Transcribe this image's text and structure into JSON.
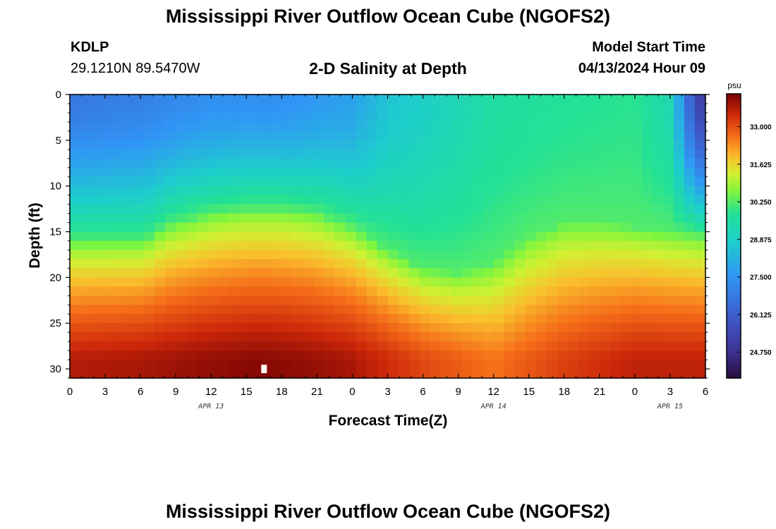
{
  "page": {
    "title": "Mississippi River Outflow Ocean Cube (NGOFS2)",
    "station_id": "KDLP",
    "coordinates": "29.1210N  89.5470W",
    "subtitle": "2-D Salinity at Depth",
    "model_start_label": "Model Start Time",
    "model_start_value": "04/13/2024 Hour 09",
    "footer_title": "Mississippi River Outflow Ocean Cube (NGOFS2)"
  },
  "chart_data": {
    "type": "heatmap",
    "title": "2-D Salinity at Depth",
    "xlabel": "Forecast Time(Z)",
    "ylabel": "Depth (ft)",
    "x_unit": "forecast hours from 2024-04-13 00Z",
    "xlim": [
      0,
      54
    ],
    "ylim": [
      31,
      0
    ],
    "x_tick_values": [
      0,
      3,
      6,
      9,
      12,
      15,
      18,
      21,
      24,
      27,
      30,
      33,
      36,
      39,
      42,
      45,
      48,
      51,
      54
    ],
    "x_tick_labels": [
      "0",
      "3",
      "6",
      "9",
      "12",
      "15",
      "18",
      "21",
      "0",
      "3",
      "6",
      "9",
      "12",
      "15",
      "18",
      "21",
      "0",
      "3",
      "6"
    ],
    "y_ticks": [
      0,
      5,
      10,
      15,
      20,
      25,
      30
    ],
    "date_labels": [
      {
        "x": 12,
        "label": "APR 13"
      },
      {
        "x": 36,
        "label": "APR 14"
      },
      {
        "x": 51,
        "label": "APR 15"
      }
    ],
    "colorbar": {
      "unit": "psu",
      "range": [
        23.8,
        34.2
      ],
      "ticks": [
        "24.750",
        "26.125",
        "27.500",
        "28.875",
        "30.250",
        "31.625",
        "33.000"
      ],
      "tick_values": [
        24.75,
        26.125,
        27.5,
        28.875,
        30.25,
        31.625,
        33.0
      ]
    },
    "halocline_depth_ft": {
      "note": "approximate depth of the ~30.25 psu contour versus forecast hour",
      "x": [
        0,
        4,
        6,
        7,
        8,
        9,
        12,
        15,
        18,
        21,
        24,
        27,
        30,
        33,
        36,
        39,
        42,
        45,
        48,
        51,
        54
      ],
      "depth": [
        16,
        16,
        16,
        15.5,
        14.5,
        14,
        13,
        12.5,
        12.5,
        13,
        14.5,
        17,
        19,
        19.5,
        18.5,
        15.5,
        14,
        14,
        14.5,
        15,
        15.5
      ]
    },
    "surface_salinity_psu": {
      "x": [
        0,
        6,
        12,
        18,
        24,
        27,
        30,
        36,
        42,
        48,
        51,
        52,
        53,
        54
      ],
      "values": [
        26.8,
        27.0,
        27.4,
        27.4,
        27.8,
        28.6,
        28.9,
        29.6,
        29.8,
        29.9,
        29.3,
        27.5,
        25.8,
        24.9
      ]
    },
    "bottom_salinity_psu": {
      "x": [
        0,
        6,
        12,
        16,
        20,
        24,
        30,
        36,
        42,
        48,
        54
      ],
      "values": [
        33.7,
        33.8,
        34.0,
        34.1,
        34.0,
        33.8,
        33.1,
        32.6,
        33.2,
        33.6,
        33.6
      ]
    },
    "marker": {
      "x": 16.5,
      "depth": 30
    }
  }
}
